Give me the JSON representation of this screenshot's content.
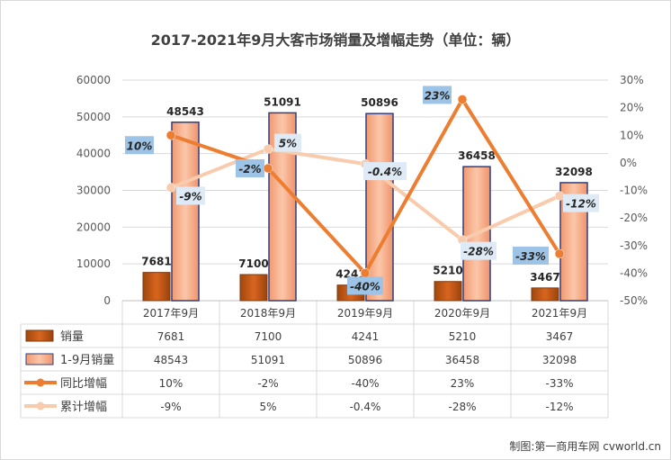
{
  "title": "2017-2021年9月大客市场销量及增幅走势（单位：辆）",
  "credit": "制图:第一商用车网 cvworld.cn",
  "chart_data": {
    "type": "bar",
    "categories": [
      "2017年9月",
      "2018年9月",
      "2019年9月",
      "2020年9月",
      "2021年9月"
    ],
    "series": [
      {
        "name": "销量",
        "type": "bar",
        "axis": "left",
        "values": [
          7681,
          7100,
          4241,
          5210,
          3467
        ],
        "labels": [
          "7681",
          "7100",
          "4241",
          "5210",
          "3467"
        ],
        "color": "#c55a11"
      },
      {
        "name": "1-9月销量",
        "type": "bar",
        "axis": "left",
        "values": [
          48543,
          51091,
          50896,
          36458,
          32098
        ],
        "labels": [
          "48543",
          "51091",
          "50896",
          "36458",
          "32098"
        ],
        "color": "#f4a582"
      },
      {
        "name": "同比增幅",
        "type": "line",
        "axis": "right",
        "values": [
          10,
          -2,
          -40,
          23,
          -33
        ],
        "labels": [
          "10%",
          "-2%",
          "-40%",
          "23%",
          "-33%"
        ],
        "color": "#ed7d31"
      },
      {
        "name": "累计增幅",
        "type": "line",
        "axis": "right",
        "values": [
          -9,
          5,
          -0.4,
          -28,
          -12
        ],
        "labels": [
          "-9%",
          "5%",
          "-0.4%",
          "-28%",
          "-12%"
        ],
        "color": "#f8cbad"
      }
    ],
    "y_left": {
      "min": 0,
      "max": 60000,
      "ticks": [
        "0",
        "10000",
        "20000",
        "30000",
        "40000",
        "50000",
        "60000"
      ]
    },
    "y_right": {
      "min": -50,
      "max": 30,
      "ticks": [
        "-50%",
        "-40%",
        "-30%",
        "-20%",
        "-10%",
        "0%",
        "10%",
        "20%",
        "30%"
      ]
    },
    "grid": true,
    "legend": "data table below chart"
  }
}
